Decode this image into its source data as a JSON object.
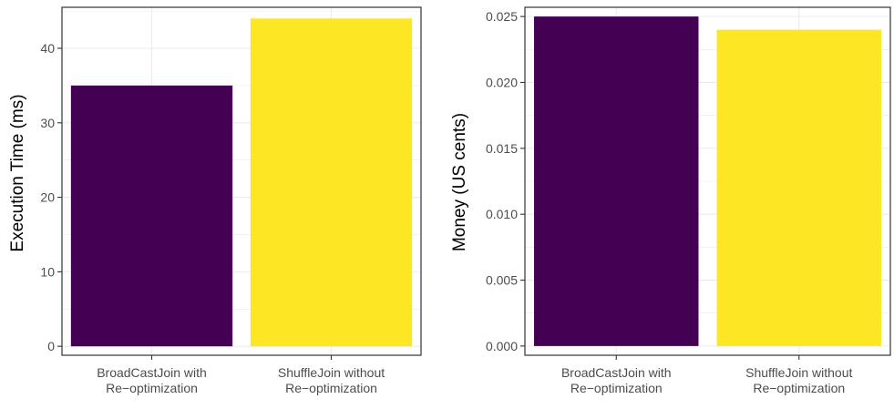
{
  "chart_data": [
    {
      "type": "bar",
      "categories": [
        [
          "BroadCastJoin with",
          "Re−optimization"
        ],
        [
          "ShuffleJoin without",
          "Re−optimization"
        ]
      ],
      "values": [
        35,
        44
      ],
      "bar_colors": [
        "#440154",
        "#fde725"
      ],
      "title": "",
      "xlabel": "",
      "ylabel": "Execution Time (ms)",
      "ylim": [
        -1.2,
        45.5
      ],
      "yticks": [
        0,
        10,
        20,
        30,
        40
      ],
      "ytick_labels": [
        "0",
        "10",
        "20",
        "30",
        "40"
      ],
      "grid": true,
      "legend": "none"
    },
    {
      "type": "bar",
      "categories": [
        [
          "BroadCastJoin with",
          "Re−optimization"
        ],
        [
          "ShuffleJoin without",
          "Re−optimization"
        ]
      ],
      "values": [
        0.025,
        0.024
      ],
      "bar_colors": [
        "#440154",
        "#fde725"
      ],
      "title": "",
      "xlabel": "",
      "ylabel": "Money (US cents)",
      "ylim": [
        -0.0007,
        0.0257
      ],
      "yticks": [
        0,
        0.005,
        0.01,
        0.015,
        0.02,
        0.025
      ],
      "ytick_labels": [
        "0.000",
        "0.005",
        "0.010",
        "0.015",
        "0.020",
        "0.025"
      ],
      "grid": true,
      "legend": "none"
    }
  ],
  "colors": {
    "panel_border": "#333333",
    "grid": "#ebebeb",
    "text": "#4d4d4d",
    "axis_title": "#000000"
  }
}
